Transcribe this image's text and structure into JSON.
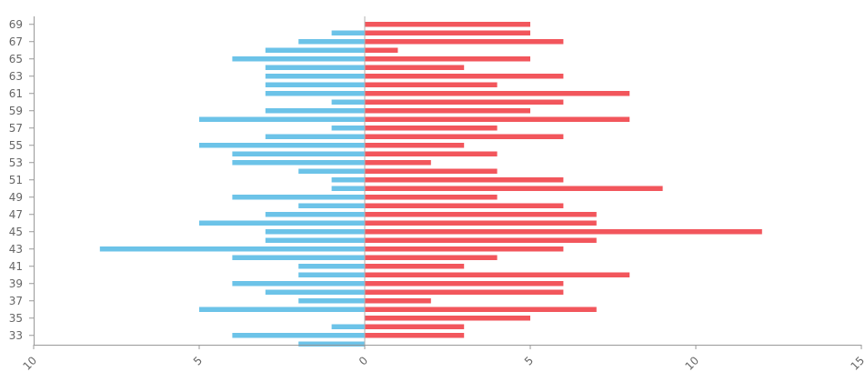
{
  "chart_data": {
    "type": "bar",
    "orientation": "horizontal",
    "layout": "diverging",
    "title": "",
    "xlabel": "",
    "ylabel": "",
    "xlim": [
      -10,
      15
    ],
    "x_ticks": [
      {
        "value": -10,
        "label": "10"
      },
      {
        "value": -5,
        "label": "5"
      },
      {
        "value": 0,
        "label": "0"
      },
      {
        "value": 5,
        "label": "5"
      },
      {
        "value": 10,
        "label": "10"
      },
      {
        "value": 15,
        "label": "15"
      }
    ],
    "categories": [
      32,
      33,
      34,
      35,
      36,
      37,
      38,
      39,
      40,
      41,
      42,
      43,
      44,
      45,
      46,
      47,
      48,
      49,
      50,
      51,
      52,
      53,
      54,
      55,
      56,
      57,
      58,
      59,
      60,
      61,
      62,
      63,
      64,
      65,
      66,
      67,
      68,
      69
    ],
    "y_tick_labels": [
      33,
      35,
      37,
      39,
      41,
      43,
      45,
      47,
      49,
      51,
      53,
      55,
      57,
      59,
      61,
      63,
      65,
      67,
      69
    ],
    "series": [
      {
        "side": "left",
        "color": "#6cc3e8",
        "values": [
          2,
          4,
          1,
          0,
          5,
          2,
          3,
          4,
          2,
          2,
          4,
          8,
          3,
          3,
          5,
          3,
          2,
          4,
          1,
          1,
          2,
          4,
          4,
          5,
          3,
          1,
          5,
          3,
          1,
          3,
          3,
          3,
          3,
          4,
          3,
          2,
          1,
          0
        ]
      },
      {
        "side": "right",
        "color": "#f2565c",
        "values": [
          0,
          3,
          3,
          5,
          7,
          2,
          6,
          6,
          8,
          3,
          4,
          6,
          7,
          12,
          7,
          7,
          6,
          4,
          9,
          6,
          4,
          2,
          4,
          3,
          6,
          4,
          8,
          5,
          6,
          8,
          4,
          6,
          3,
          5,
          1,
          6,
          5,
          5
        ]
      }
    ],
    "grid": false,
    "legend": "none"
  }
}
